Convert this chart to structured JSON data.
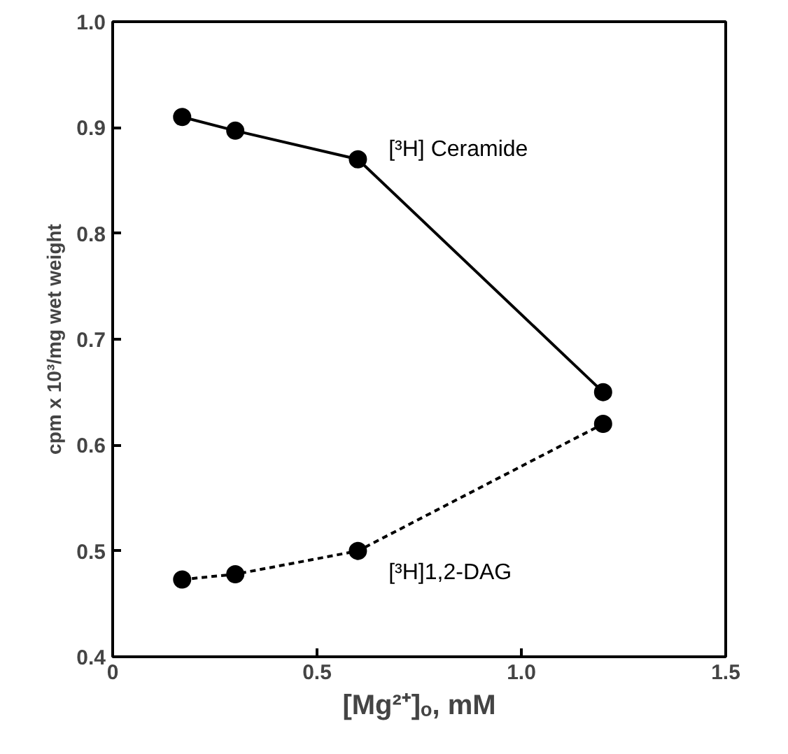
{
  "chart_data": {
    "type": "line",
    "xlabel": "[Mg²⁺]ₒ, mM",
    "ylabel": "cpm x 10³/mg wet weight",
    "x": [
      0.17,
      0.3,
      0.6,
      1.2
    ],
    "series": [
      {
        "name": "[³H] Ceramide",
        "color": "#000000",
        "values": [
          0.91,
          0.897,
          0.87,
          0.65
        ],
        "line_style": "solid"
      },
      {
        "name": "[³H]1,2-DAG",
        "color": "#000000",
        "values": [
          0.473,
          0.478,
          0.5,
          0.62
        ],
        "line_style": "dashed"
      }
    ],
    "xlim": [
      0,
      1.5
    ],
    "ylim": [
      0.4,
      1.0
    ],
    "xticks": [
      0,
      0.5,
      {
        "value": 1,
        "label": "1.0"
      },
      1.5
    ],
    "yticks": [
      0.4,
      0.5,
      0.6,
      0.7,
      0.8,
      0.9,
      {
        "value": 1,
        "label": "1.0"
      }
    ],
    "marker": "circle",
    "grid": false
  }
}
